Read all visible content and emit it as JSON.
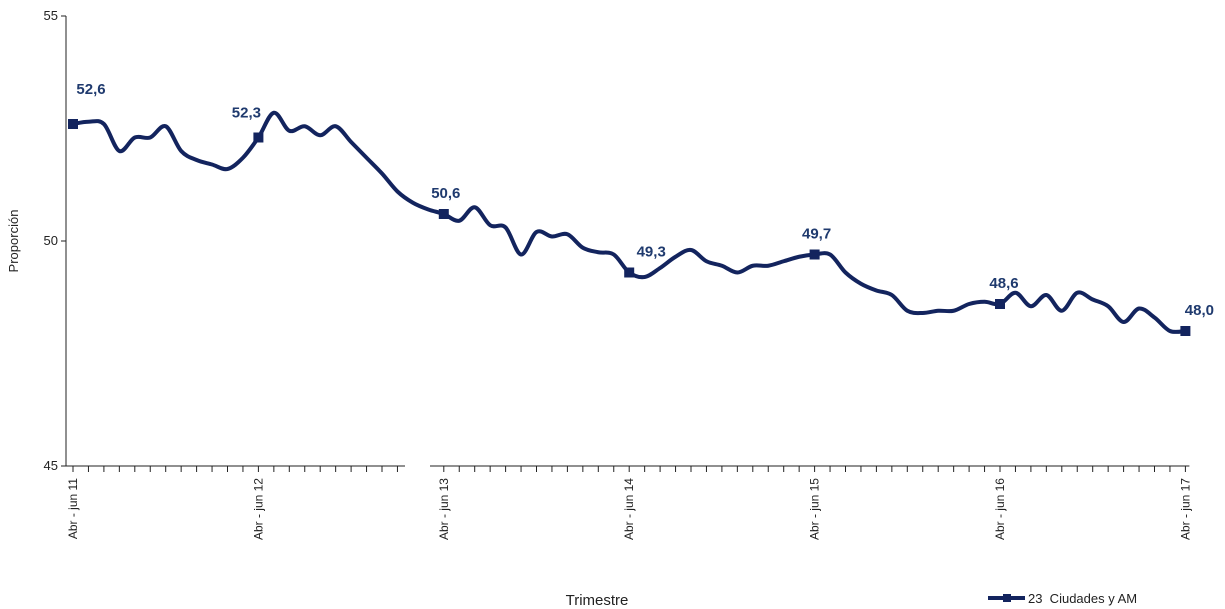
{
  "chart_data": {
    "type": "line",
    "y_label": "Proporción",
    "x_label": "Trimestre",
    "categories": [
      "Abr - jun 11",
      null,
      null,
      null,
      null,
      null,
      null,
      null,
      null,
      null,
      null,
      null,
      "Abr - jun 12",
      null,
      null,
      null,
      null,
      null,
      null,
      null,
      null,
      null,
      null,
      null,
      "Abr - jun 13",
      null,
      null,
      null,
      null,
      null,
      null,
      null,
      null,
      null,
      null,
      null,
      "Abr - jun 14",
      null,
      null,
      null,
      null,
      null,
      null,
      null,
      null,
      null,
      null,
      null,
      "Abr - jun 15",
      null,
      null,
      null,
      null,
      null,
      null,
      null,
      null,
      null,
      null,
      null,
      "Abr - jun 16",
      null,
      null,
      null,
      null,
      null,
      null,
      null,
      null,
      null,
      null,
      null,
      "Abr - jun 17"
    ],
    "series": [
      {
        "name": "23  Ciudades y AM",
        "color": "#13245e",
        "values": [
          52.6,
          52.65,
          52.6,
          52.0,
          52.3,
          52.3,
          52.55,
          52.0,
          51.8,
          51.7,
          51.6,
          51.85,
          52.3,
          52.85,
          52.45,
          52.55,
          52.35,
          52.55,
          52.2,
          51.85,
          51.5,
          51.1,
          50.85,
          50.7,
          50.6,
          50.45,
          50.75,
          50.35,
          50.3,
          49.7,
          50.2,
          50.1,
          50.15,
          49.85,
          49.75,
          49.7,
          49.3,
          49.2,
          49.4,
          49.65,
          49.8,
          49.55,
          49.45,
          49.3,
          49.45,
          49.45,
          49.55,
          49.65,
          49.7,
          49.7,
          49.3,
          49.05,
          48.9,
          48.8,
          48.45,
          48.4,
          48.45,
          48.45,
          48.6,
          48.65,
          48.6,
          48.85,
          48.55,
          48.8,
          48.45,
          48.85,
          48.7,
          48.55,
          48.2,
          48.5,
          48.3,
          48.0,
          48.0
        ],
        "value_labels": [
          "52,6",
          null,
          null,
          null,
          null,
          null,
          null,
          null,
          null,
          null,
          null,
          null,
          "52,3",
          null,
          null,
          null,
          null,
          null,
          null,
          null,
          null,
          null,
          null,
          null,
          "50,6",
          null,
          null,
          null,
          null,
          null,
          null,
          null,
          null,
          null,
          null,
          null,
          "49,3",
          null,
          null,
          null,
          null,
          null,
          null,
          null,
          null,
          null,
          null,
          null,
          "49,7",
          null,
          null,
          null,
          null,
          null,
          null,
          null,
          null,
          null,
          null,
          null,
          "48,6",
          null,
          null,
          null,
          null,
          null,
          null,
          null,
          null,
          null,
          null,
          null,
          "48,0"
        ]
      }
    ],
    "ylim": [
      45,
      55
    ],
    "yticks": [
      45,
      50,
      55
    ],
    "grid": false,
    "legend": "bottom-right"
  }
}
